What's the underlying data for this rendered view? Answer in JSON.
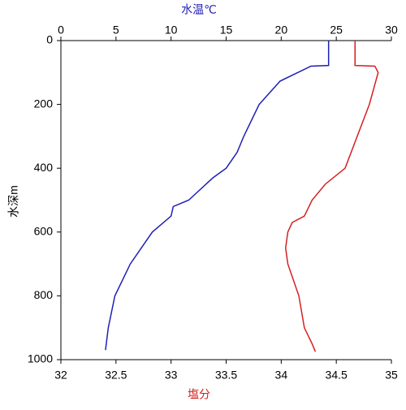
{
  "chart_data": {
    "type": "line",
    "x_label": "塩分",
    "x2_label": "水温℃",
    "y_label": "水深m",
    "xlim": [
      32,
      35
    ],
    "xticks": [
      32,
      32.5,
      33,
      33.5,
      34,
      34.5,
      35
    ],
    "x2lim": [
      0,
      30
    ],
    "x2ticks": [
      0,
      5,
      10,
      15,
      20,
      25,
      30
    ],
    "ylim": [
      1000,
      0
    ],
    "yticks": [
      0,
      200,
      400,
      600,
      800,
      1000
    ],
    "series": [
      {
        "name": "水温℃",
        "color": "#1f1fb4",
        "axis": "x2",
        "x": [
          24.3,
          24.3,
          22.7,
          19.9,
          18.0,
          16.6,
          16.0,
          15.0,
          13.8,
          11.6,
          10.2,
          10.0,
          8.3,
          7.7,
          6.3,
          4.9,
          4.3,
          4.05
        ],
        "values": [
          0,
          78,
          80,
          127,
          200,
          300,
          350,
          400,
          430,
          500,
          520,
          550,
          600,
          630,
          700,
          800,
          900,
          970
        ]
      },
      {
        "name": "塩分",
        "color": "#d42020",
        "axis": "x",
        "x": [
          34.67,
          34.67,
          34.85,
          34.88,
          34.8,
          34.69,
          34.58,
          34.4,
          34.28,
          34.21,
          34.1,
          34.06,
          34.04,
          34.06,
          34.11,
          34.16,
          34.21,
          34.28,
          34.31
        ],
        "values": [
          0,
          78,
          80,
          100,
          200,
          300,
          400,
          450,
          500,
          550,
          570,
          600,
          650,
          700,
          750,
          800,
          900,
          950,
          975
        ]
      }
    ]
  }
}
